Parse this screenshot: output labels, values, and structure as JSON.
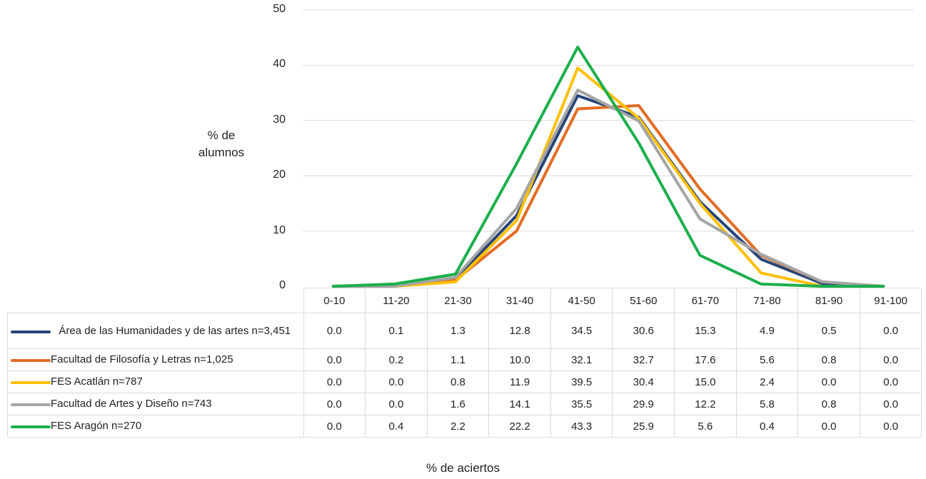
{
  "chart_data": {
    "type": "line",
    "xlabel": "% de aciertos",
    "ylabel": "% de\nalumnos",
    "ylim": [
      0,
      50
    ],
    "yticks": [
      "0",
      "10",
      "20",
      "30",
      "40",
      "50"
    ],
    "categories": [
      "0-10",
      "11-20",
      "21-30",
      "31-40",
      "41-50",
      "51-60",
      "61-70",
      "71-80",
      "81-90",
      "91-100"
    ],
    "grid": true,
    "legend": "table-left",
    "series": [
      {
        "name": "Área de las Humanidades y de las artes n=3,451",
        "color": "#264478",
        "values": [
          0.0,
          0.1,
          1.3,
          12.8,
          34.5,
          30.6,
          15.3,
          4.9,
          0.5,
          0.0
        ],
        "labels": [
          "0.0",
          "0.1",
          "1.3",
          "12.8",
          "34.5",
          "30.6",
          "15.3",
          "4.9",
          "0.5",
          "0.0"
        ]
      },
      {
        "name": "Facultad  de Filosofía y Letras n=1,025",
        "color": "#E46C24",
        "values": [
          0.0,
          0.2,
          1.1,
          10.0,
          32.1,
          32.7,
          17.6,
          5.6,
          0.8,
          0.0
        ],
        "labels": [
          "0.0",
          "0.2",
          "1.1",
          "10.0",
          "32.1",
          "32.7",
          "17.6",
          "5.6",
          "0.8",
          "0.0"
        ]
      },
      {
        "name": "FES Acatlán n=787",
        "color": "#FFC000",
        "values": [
          0.0,
          0.0,
          0.8,
          11.9,
          39.5,
          30.4,
          15.0,
          2.4,
          0.0,
          0.0
        ],
        "labels": [
          "0.0",
          "0.0",
          "0.8",
          "11.9",
          "39.5",
          "30.4",
          "15.0",
          "2.4",
          "0.0",
          "0.0"
        ]
      },
      {
        "name": "Facultad de Artes y Diseño n=743",
        "color": "#A5A5A5",
        "values": [
          0.0,
          0.0,
          1.6,
          14.1,
          35.5,
          29.9,
          12.2,
          5.8,
          0.8,
          0.0
        ],
        "labels": [
          "0.0",
          "0.0",
          "1.6",
          "14.1",
          "35.5",
          "29.9",
          "12.2",
          "5.8",
          "0.8",
          "0.0"
        ]
      },
      {
        "name": "FES Aragón n=270",
        "color": "#1BAF4B",
        "values": [
          0.0,
          0.4,
          2.2,
          22.2,
          43.3,
          25.9,
          5.6,
          0.4,
          0.0,
          0.0
        ],
        "labels": [
          "0.0",
          "0.4",
          "2.2",
          "22.2",
          "43.3",
          "25.9",
          "5.6",
          "0.4",
          "0.0",
          "0.0"
        ]
      }
    ]
  }
}
